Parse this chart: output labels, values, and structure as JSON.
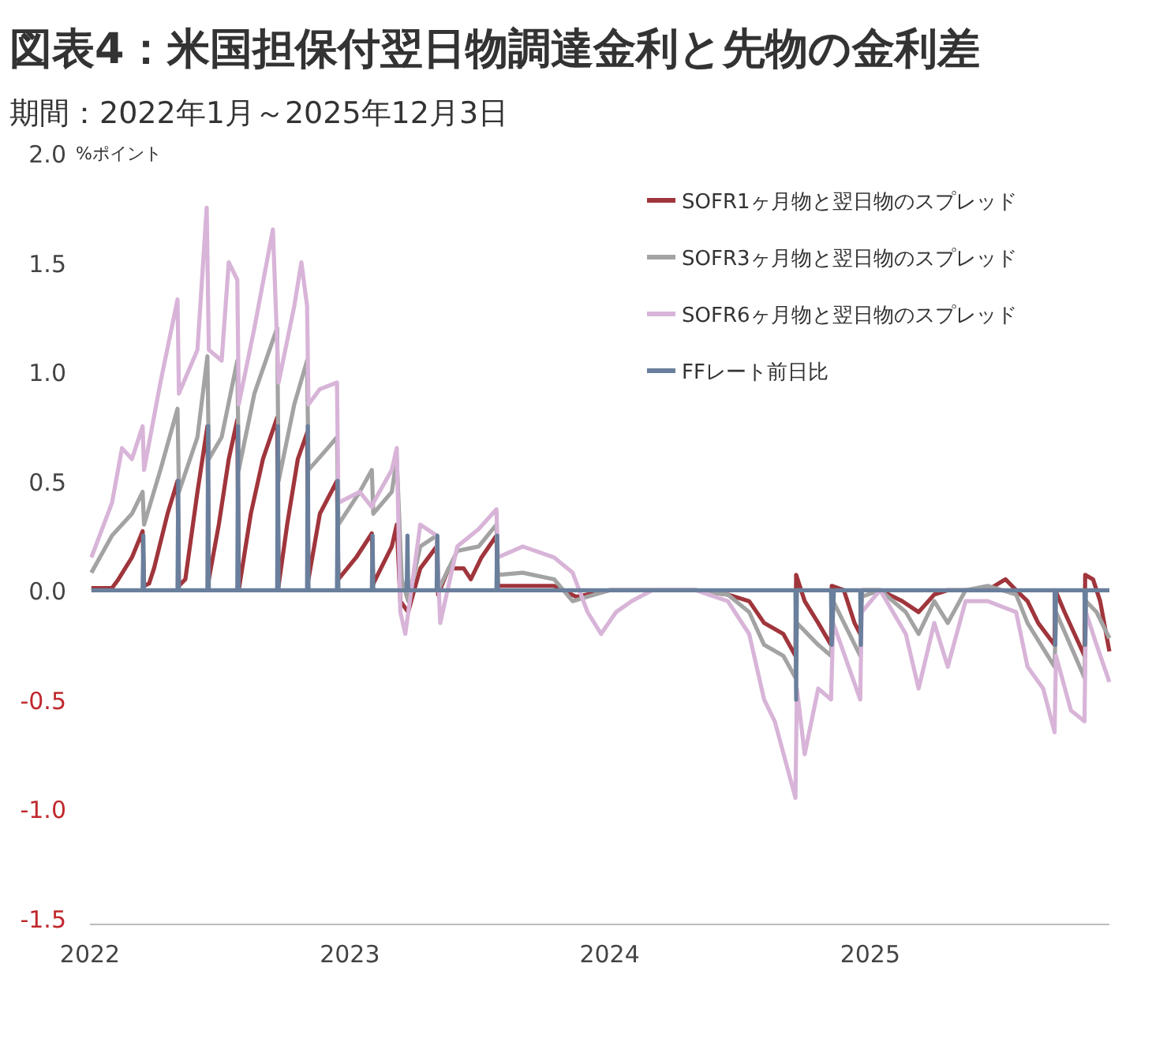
{
  "chart_data": {
    "type": "line",
    "title": "図表4：米国担保付翌日物調達金利と先物の金利差",
    "subtitle": "期間：2022年1月～2025年12月3日",
    "ylabel": "%ポイント",
    "legend": "top right",
    "grid": false,
    "xlim": [
      "2022-01-01",
      "2025-12-03"
    ],
    "xticks": [
      {
        "value": "2022-01-01",
        "label": "2022"
      },
      {
        "value": "2023-01-01",
        "label": "2023"
      },
      {
        "value": "2024-01-01",
        "label": "2024"
      },
      {
        "value": "2025-01-01",
        "label": "2025"
      }
    ],
    "ylim": [
      -1.5,
      2.0
    ],
    "yticks": [
      {
        "value": 2.0,
        "label": "2.0"
      },
      1.5,
      {
        "value": 1.0,
        "label": "1.0"
      },
      0.5,
      {
        "value": 0.0,
        "label": "0.0"
      },
      {
        "value": -0.5,
        "label": "-0.5"
      },
      {
        "value": -1.0,
        "label": "-1.0"
      },
      {
        "value": -1.5,
        "label": "-1.5"
      }
    ],
    "series": [
      {
        "name": "SOFR1ヶ月物と翌日物のスプレッド",
        "color": "#a0353c",
        "x": [
          "2022-01-03",
          "2022-02-01",
          "2022-02-10",
          "2022-03-01",
          "2022-03-16",
          "2022-03-18",
          "2022-03-25",
          "2022-04-01",
          "2022-04-20",
          "2022-05-04",
          "2022-05-06",
          "2022-05-15",
          "2022-06-01",
          "2022-06-15",
          "2022-06-17",
          "2022-07-01",
          "2022-07-15",
          "2022-07-27",
          "2022-07-29",
          "2022-08-15",
          "2022-09-01",
          "2022-09-21",
          "2022-09-23",
          "2022-10-05",
          "2022-10-20",
          "2022-11-02",
          "2022-11-04",
          "2022-11-20",
          "2022-12-14",
          "2022-12-16",
          "2023-01-10",
          "2023-02-01",
          "2023-02-03",
          "2023-03-01",
          "2023-03-08",
          "2023-03-13",
          "2023-03-24",
          "2023-04-10",
          "2023-05-03",
          "2023-05-05",
          "2023-05-20",
          "2023-06-10",
          "2023-06-20",
          "2023-07-05",
          "2023-07-26",
          "2023-07-28",
          "2023-09-01",
          "2023-10-15",
          "2023-11-15",
          "2024-01-01",
          "2024-03-01",
          "2024-05-01",
          "2024-06-15",
          "2024-07-15",
          "2024-08-05",
          "2024-09-01",
          "2024-09-18",
          "2024-09-19",
          "2024-10-01",
          "2024-10-20",
          "2024-11-07",
          "2024-11-08",
          "2024-11-25",
          "2024-12-10",
          "2024-12-18",
          "2024-12-20",
          "2025-01-15",
          "2025-02-15",
          "2025-03-10",
          "2025-04-01",
          "2025-04-20",
          "2025-05-15",
          "2025-06-15",
          "2025-07-10",
          "2025-07-25",
          "2025-08-10",
          "2025-08-25",
          "2025-09-17",
          "2025-09-18",
          "2025-10-01",
          "2025-10-15",
          "2025-10-29",
          "2025-10-30",
          "2025-11-10",
          "2025-11-20",
          "2025-12-03"
        ],
        "values": [
          0.01,
          0.01,
          0.05,
          0.15,
          0.27,
          0.02,
          0.03,
          0.1,
          0.35,
          0.5,
          0.02,
          0.05,
          0.45,
          0.75,
          0.05,
          0.3,
          0.6,
          0.78,
          0.0,
          0.35,
          0.6,
          0.79,
          0.02,
          0.3,
          0.6,
          0.72,
          0.05,
          0.35,
          0.5,
          0.05,
          0.15,
          0.26,
          0.03,
          0.2,
          0.3,
          -0.05,
          -0.1,
          0.1,
          0.2,
          -0.02,
          0.1,
          0.1,
          0.05,
          0.15,
          0.25,
          0.02,
          0.02,
          0.02,
          -0.03,
          0.0,
          0.0,
          0.0,
          -0.02,
          -0.05,
          -0.15,
          -0.2,
          -0.3,
          0.07,
          -0.05,
          -0.15,
          -0.25,
          0.02,
          0.0,
          -0.15,
          -0.2,
          0.0,
          0.0,
          -0.05,
          -0.1,
          -0.02,
          0.0,
          0.0,
          0.0,
          0.05,
          0.0,
          -0.05,
          -0.15,
          -0.25,
          0.0,
          -0.1,
          -0.2,
          -0.3,
          0.07,
          0.05,
          -0.05,
          -0.28
        ]
      },
      {
        "name": "SOFR3ヶ月物と翌日物のスプレッド",
        "color": "#a3a3a3",
        "x": [
          "2022-01-03",
          "2022-02-01",
          "2022-03-01",
          "2022-03-16",
          "2022-03-18",
          "2022-04-10",
          "2022-05-04",
          "2022-05-06",
          "2022-06-01",
          "2022-06-15",
          "2022-06-17",
          "2022-07-05",
          "2022-07-27",
          "2022-07-29",
          "2022-08-20",
          "2022-09-21",
          "2022-09-23",
          "2022-10-15",
          "2022-11-02",
          "2022-11-04",
          "2022-12-01",
          "2022-12-14",
          "2022-12-16",
          "2023-01-15",
          "2023-02-01",
          "2023-02-03",
          "2023-03-01",
          "2023-03-08",
          "2023-03-15",
          "2023-03-24",
          "2023-04-10",
          "2023-05-03",
          "2023-05-05",
          "2023-06-01",
          "2023-07-01",
          "2023-07-26",
          "2023-07-28",
          "2023-09-01",
          "2023-10-15",
          "2023-11-10",
          "2024-01-01",
          "2024-03-01",
          "2024-05-01",
          "2024-06-15",
          "2024-07-15",
          "2024-08-05",
          "2024-09-01",
          "2024-09-18",
          "2024-09-20",
          "2024-10-20",
          "2024-11-07",
          "2024-11-10",
          "2024-12-18",
          "2024-12-20",
          "2025-01-15",
          "2025-02-20",
          "2025-03-10",
          "2025-04-01",
          "2025-04-20",
          "2025-05-15",
          "2025-06-15",
          "2025-07-25",
          "2025-08-10",
          "2025-09-17",
          "2025-09-19",
          "2025-10-29",
          "2025-10-31",
          "2025-11-15",
          "2025-12-03"
        ],
        "values": [
          0.08,
          0.25,
          0.35,
          0.45,
          0.3,
          0.55,
          0.83,
          0.45,
          0.7,
          1.07,
          0.6,
          0.7,
          1.05,
          0.55,
          0.9,
          1.2,
          0.5,
          0.85,
          1.05,
          0.55,
          0.65,
          0.7,
          0.3,
          0.45,
          0.55,
          0.35,
          0.45,
          0.6,
          0.05,
          -0.05,
          0.2,
          0.25,
          0.0,
          0.18,
          0.2,
          0.3,
          0.07,
          0.08,
          0.05,
          -0.05,
          0.0,
          0.0,
          0.0,
          -0.02,
          -0.1,
          -0.25,
          -0.3,
          -0.4,
          -0.15,
          -0.25,
          -0.3,
          -0.05,
          -0.3,
          -0.03,
          0.0,
          -0.1,
          -0.2,
          -0.05,
          -0.15,
          0.0,
          0.02,
          -0.02,
          -0.15,
          -0.35,
          -0.1,
          -0.4,
          -0.05,
          -0.1,
          -0.22
        ]
      },
      {
        "name": "SOFR6ヶ月物と翌日物のスプレッド",
        "color": "#d8b4d8",
        "x": [
          "2022-01-03",
          "2022-02-01",
          "2022-02-15",
          "2022-03-01",
          "2022-03-16",
          "2022-03-18",
          "2022-04-10",
          "2022-05-04",
          "2022-05-06",
          "2022-06-01",
          "2022-06-14",
          "2022-06-17",
          "2022-07-05",
          "2022-07-15",
          "2022-07-27",
          "2022-07-29",
          "2022-08-20",
          "2022-09-15",
          "2022-09-23",
          "2022-10-15",
          "2022-10-25",
          "2022-11-02",
          "2022-11-04",
          "2022-11-20",
          "2022-12-14",
          "2022-12-16",
          "2023-01-15",
          "2023-02-01",
          "2023-02-03",
          "2023-03-01",
          "2023-03-08",
          "2023-03-13",
          "2023-03-20",
          "2023-04-10",
          "2023-05-03",
          "2023-05-08",
          "2023-06-01",
          "2023-07-01",
          "2023-07-26",
          "2023-07-28",
          "2023-09-01",
          "2023-10-15",
          "2023-11-10",
          "2023-12-01",
          "2023-12-20",
          "2024-01-10",
          "2024-02-01",
          "2024-03-01",
          "2024-05-01",
          "2024-06-15",
          "2024-07-15",
          "2024-08-05",
          "2024-08-20",
          "2024-09-18",
          "2024-09-20",
          "2024-10-01",
          "2024-10-20",
          "2024-11-07",
          "2024-11-10",
          "2024-12-18",
          "2024-12-20",
          "2025-01-15",
          "2025-02-20",
          "2025-03-10",
          "2025-04-01",
          "2025-04-20",
          "2025-05-15",
          "2025-06-15",
          "2025-07-25",
          "2025-08-10",
          "2025-09-01",
          "2025-09-17",
          "2025-09-19",
          "2025-10-10",
          "2025-10-29",
          "2025-10-31",
          "2025-11-15",
          "2025-12-03"
        ],
        "values": [
          0.15,
          0.4,
          0.65,
          0.6,
          0.75,
          0.55,
          0.95,
          1.33,
          0.9,
          1.1,
          1.75,
          1.1,
          1.05,
          1.5,
          1.42,
          0.85,
          1.2,
          1.65,
          0.95,
          1.3,
          1.5,
          1.3,
          0.85,
          0.92,
          0.95,
          0.4,
          0.45,
          0.38,
          0.4,
          0.55,
          0.65,
          -0.1,
          -0.2,
          0.3,
          0.25,
          -0.15,
          0.2,
          0.28,
          0.37,
          0.15,
          0.2,
          0.15,
          0.08,
          -0.1,
          -0.2,
          -0.1,
          -0.05,
          0.0,
          0.0,
          -0.05,
          -0.2,
          -0.5,
          -0.6,
          -0.95,
          -0.45,
          -0.75,
          -0.45,
          -0.5,
          -0.15,
          -0.5,
          -0.1,
          0.0,
          -0.2,
          -0.45,
          -0.15,
          -0.35,
          -0.05,
          -0.05,
          -0.1,
          -0.35,
          -0.45,
          -0.65,
          -0.3,
          -0.55,
          -0.6,
          -0.1,
          -0.25,
          -0.42
        ]
      },
      {
        "name": "FFレート前日比",
        "color": "#6a7f9c",
        "x": [
          "2022-01-03",
          "2022-03-16",
          "2022-03-17",
          "2022-03-18",
          "2022-05-04",
          "2022-05-05",
          "2022-05-06",
          "2022-06-15",
          "2022-06-16",
          "2022-06-17",
          "2022-07-27",
          "2022-07-28",
          "2022-07-29",
          "2022-09-21",
          "2022-09-22",
          "2022-09-23",
          "2022-11-02",
          "2022-11-03",
          "2022-11-04",
          "2022-12-14",
          "2022-12-15",
          "2022-12-16",
          "2023-02-01",
          "2023-02-02",
          "2023-02-03",
          "2023-03-22",
          "2023-03-23",
          "2023-03-24",
          "2023-05-03",
          "2023-05-04",
          "2023-05-05",
          "2023-07-26",
          "2023-07-27",
          "2023-07-28",
          "2024-09-18",
          "2024-09-19",
          "2024-09-20",
          "2024-11-07",
          "2024-11-08",
          "2024-11-11",
          "2024-12-18",
          "2024-12-19",
          "2024-12-20",
          "2025-09-17",
          "2025-09-18",
          "2025-09-19",
          "2025-10-29",
          "2025-10-30",
          "2025-10-31",
          "2025-12-03"
        ],
        "values": [
          0,
          0,
          0.25,
          0,
          0,
          0.5,
          0,
          0,
          0.75,
          0,
          0,
          0.75,
          0,
          0,
          0.75,
          0,
          0,
          0.75,
          0,
          0,
          0.5,
          0,
          0,
          0.25,
          0,
          0,
          0.25,
          0,
          0,
          0.25,
          0,
          0,
          0.25,
          0,
          0,
          -0.5,
          0,
          0,
          -0.25,
          0,
          0,
          -0.25,
          0,
          0,
          -0.25,
          0,
          0,
          -0.25,
          0,
          0
        ]
      }
    ]
  }
}
